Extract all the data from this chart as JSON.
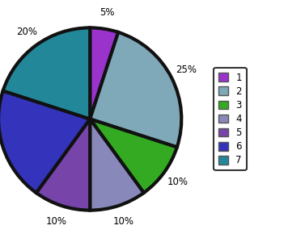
{
  "labels": [
    "1",
    "2",
    "3",
    "4",
    "5",
    "6",
    "7"
  ],
  "values": [
    5,
    25,
    10,
    10,
    10,
    20,
    20
  ],
  "colors": [
    "#9933cc",
    "#7fa8b8",
    "#33aa22",
    "#8888bb",
    "#7744aa",
    "#3333bb",
    "#228899"
  ],
  "startangle": 90,
  "wedge_linewidth": 3.0,
  "wedge_edgecolor": "#111111",
  "legend_labels": [
    "1",
    "2",
    "3",
    "4",
    "5",
    "6",
    "7"
  ],
  "background_color": "#ffffff",
  "pct_fontsize": 8.5,
  "pct_distance": 1.18
}
